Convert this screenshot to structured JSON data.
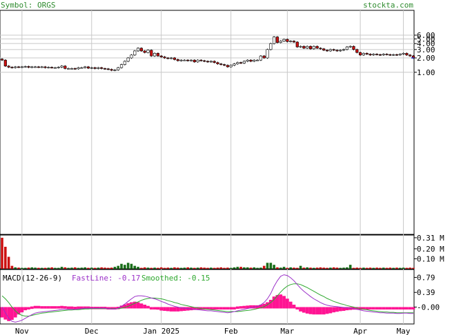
{
  "header": {
    "symbol_text": "Symbol: ORGS",
    "site": "stockta.com"
  },
  "macd_legend": {
    "title": "MACD(12-26-9)",
    "fast": "FastLine: -0.17",
    "smoothed": "Smoothed: -0.15"
  },
  "colors": {
    "text_green": "#2e8b2e",
    "fast_line": "#9b30c8",
    "smoothed_line": "#2ea82e",
    "hist": "#ff1493",
    "up_candle": "#ffffff",
    "down_candle": "#cc1111",
    "vol_up": "#1a6e1a",
    "vol_down": "#cc1111",
    "grid": "#c8c8c8"
  },
  "chart_data": [
    {
      "type": "candlestick",
      "name": "price",
      "scale": "log",
      "y_ticks": [
        "6.00",
        "5.00",
        "4.00",
        "3.00",
        "2.00",
        "1.00"
      ],
      "y_tick_values": [
        6,
        5,
        4,
        3,
        2,
        1
      ],
      "x_tick_labels": [
        "Nov",
        "Dec",
        "Jan 2025",
        "Feb",
        "Mar",
        "Apr",
        "May"
      ],
      "x_tick_index": [
        6,
        27,
        48,
        69,
        86,
        108,
        121
      ],
      "grid": true,
      "closes": [
        1.8,
        1.35,
        1.28,
        1.25,
        1.3,
        1.28,
        1.3,
        1.32,
        1.27,
        1.3,
        1.3,
        1.28,
        1.3,
        1.25,
        1.27,
        1.25,
        1.25,
        1.28,
        1.35,
        1.2,
        1.2,
        1.2,
        1.18,
        1.25,
        1.25,
        1.3,
        1.22,
        1.25,
        1.2,
        1.25,
        1.2,
        1.18,
        1.15,
        1.1,
        1.12,
        1.25,
        1.45,
        1.7,
        2.0,
        2.3,
        2.8,
        3.2,
        2.8,
        2.6,
        2.9,
        2.2,
        2.5,
        2.2,
        2.1,
        2.0,
        1.95,
        2.0,
        1.85,
        1.75,
        1.8,
        1.8,
        1.75,
        1.8,
        1.65,
        1.8,
        1.75,
        1.7,
        1.65,
        1.7,
        1.6,
        1.5,
        1.45,
        1.4,
        1.3,
        1.4,
        1.5,
        1.6,
        1.55,
        1.7,
        1.8,
        1.7,
        1.8,
        1.8,
        2.2,
        2.0,
        3.0,
        4.0,
        5.5,
        4.2,
        4.5,
        4.9,
        4.4,
        4.5,
        4.3,
        3.4,
        3.5,
        3.2,
        3.5,
        3.1,
        3.5,
        3.2,
        3.1,
        2.9,
        2.8,
        3.0,
        2.9,
        2.8,
        2.9,
        3.0,
        3.4,
        3.5,
        3.0,
        2.6,
        2.3,
        2.5,
        2.4,
        2.3,
        2.4,
        2.35,
        2.3,
        2.4,
        2.35,
        2.3,
        2.35,
        2.3,
        2.4,
        2.5,
        2.3,
        2.2,
        2.0
      ],
      "last_close": 2.0
    },
    {
      "type": "bar",
      "name": "volume",
      "y_ticks": [
        "0.31 M",
        "0.20 M",
        "0.10 M"
      ],
      "y_tick_values": [
        0.31,
        0.2,
        0.1
      ],
      "values": [
        0.31,
        0.22,
        0.12,
        0.03,
        0.015,
        0.012,
        0.01,
        0.01,
        0.012,
        0.015,
        0.012,
        0.01,
        0.01,
        0.01,
        0.012,
        0.015,
        0.01,
        0.01,
        0.02,
        0.015,
        0.01,
        0.012,
        0.015,
        0.01,
        0.012,
        0.015,
        0.01,
        0.012,
        0.01,
        0.012,
        0.015,
        0.012,
        0.01,
        0.012,
        0.02,
        0.03,
        0.05,
        0.04,
        0.06,
        0.05,
        0.03,
        0.02,
        0.01,
        0.015,
        0.012,
        0.01,
        0.012,
        0.01,
        0.015,
        0.01,
        0.012,
        0.01,
        0.015,
        0.012,
        0.01,
        0.012,
        0.015,
        0.012,
        0.01,
        0.012,
        0.015,
        0.012,
        0.01,
        0.012,
        0.01,
        0.012,
        0.015,
        0.01,
        0.012,
        0.01,
        0.015,
        0.02,
        0.02,
        0.015,
        0.015,
        0.012,
        0.015,
        0.01,
        0.012,
        0.03,
        0.06,
        0.06,
        0.04,
        0.015,
        0.012,
        0.02,
        0.01,
        0.015,
        0.012,
        0.01,
        0.03,
        0.012,
        0.015,
        0.012,
        0.01,
        0.012,
        0.015,
        0.012,
        0.01,
        0.012,
        0.015,
        0.012,
        0.01,
        0.012,
        0.015,
        0.04,
        0.01,
        0.012,
        0.01,
        0.012,
        0.01,
        0.012,
        0.01,
        0.012,
        0.01,
        0.012,
        0.01,
        0.012,
        0.01,
        0.012,
        0.01,
        0.012,
        0.01,
        0.012,
        0.01
      ],
      "ylim": [
        0,
        0.33
      ]
    },
    {
      "type": "line",
      "name": "MACD(12-26-9)",
      "y_ticks": [
        "0.79",
        "0.39",
        "-0.00"
      ],
      "y_tick_values": [
        0.79,
        0.39,
        0.0
      ],
      "ylim": [
        -0.45,
        1.0
      ],
      "series": [
        {
          "name": "FastLine",
          "values": [
            0.0,
            -0.15,
            -0.3,
            -0.38,
            -0.4,
            -0.38,
            -0.35,
            -0.3,
            -0.25,
            -0.2,
            -0.16,
            -0.14,
            -0.13,
            -0.12,
            -0.11,
            -0.1,
            -0.09,
            -0.08,
            -0.06,
            -0.06,
            -0.06,
            -0.06,
            -0.06,
            -0.05,
            -0.04,
            -0.03,
            -0.03,
            -0.03,
            -0.03,
            -0.03,
            -0.03,
            -0.03,
            -0.04,
            -0.05,
            -0.05,
            -0.03,
            0.02,
            0.08,
            0.15,
            0.22,
            0.28,
            0.3,
            0.3,
            0.29,
            0.27,
            0.24,
            0.22,
            0.19,
            0.15,
            0.12,
            0.08,
            0.05,
            0.02,
            0.0,
            -0.02,
            -0.03,
            -0.04,
            -0.05,
            -0.06,
            -0.07,
            -0.08,
            -0.09,
            -0.1,
            -0.1,
            -0.11,
            -0.12,
            -0.13,
            -0.14,
            -0.15,
            -0.14,
            -0.12,
            -0.1,
            -0.08,
            -0.06,
            -0.04,
            -0.02,
            0.0,
            0.02,
            0.06,
            0.12,
            0.22,
            0.36,
            0.55,
            0.7,
            0.82,
            0.86,
            0.84,
            0.78,
            0.7,
            0.6,
            0.5,
            0.42,
            0.35,
            0.28,
            0.22,
            0.17,
            0.12,
            0.08,
            0.05,
            0.03,
            0.02,
            0.01,
            0.0,
            -0.01,
            -0.02,
            -0.03,
            -0.04,
            -0.06,
            -0.08,
            -0.1,
            -0.11,
            -0.12,
            -0.13,
            -0.14,
            -0.15,
            -0.15,
            -0.16,
            -0.16,
            -0.16,
            -0.17,
            -0.17,
            -0.16,
            -0.16,
            -0.17,
            -0.17
          ]
        },
        {
          "name": "Smoothed",
          "values": [
            0.3,
            0.22,
            0.12,
            0.0,
            -0.1,
            -0.18,
            -0.22,
            -0.24,
            -0.24,
            -0.22,
            -0.2,
            -0.18,
            -0.16,
            -0.15,
            -0.14,
            -0.13,
            -0.12,
            -0.11,
            -0.1,
            -0.09,
            -0.08,
            -0.08,
            -0.07,
            -0.07,
            -0.06,
            -0.05,
            -0.05,
            -0.04,
            -0.04,
            -0.04,
            -0.04,
            -0.04,
            -0.04,
            -0.04,
            -0.04,
            -0.04,
            -0.03,
            -0.01,
            0.02,
            0.06,
            0.1,
            0.14,
            0.18,
            0.21,
            0.23,
            0.24,
            0.24,
            0.23,
            0.22,
            0.2,
            0.17,
            0.15,
            0.12,
            0.1,
            0.07,
            0.05,
            0.03,
            0.01,
            -0.01,
            -0.02,
            -0.04,
            -0.05,
            -0.06,
            -0.07,
            -0.08,
            -0.09,
            -0.1,
            -0.11,
            -0.12,
            -0.12,
            -0.12,
            -0.12,
            -0.11,
            -0.1,
            -0.09,
            -0.08,
            -0.06,
            -0.04,
            -0.02,
            0.01,
            0.06,
            0.12,
            0.2,
            0.3,
            0.4,
            0.49,
            0.56,
            0.6,
            0.62,
            0.62,
            0.6,
            0.56,
            0.52,
            0.47,
            0.42,
            0.37,
            0.32,
            0.28,
            0.23,
            0.19,
            0.15,
            0.12,
            0.09,
            0.07,
            0.04,
            0.02,
            0.0,
            -0.02,
            -0.04,
            -0.06,
            -0.07,
            -0.09,
            -0.1,
            -0.11,
            -0.12,
            -0.13,
            -0.13,
            -0.14,
            -0.14,
            -0.15,
            -0.15,
            -0.15,
            -0.15,
            -0.15,
            -0.15
          ]
        }
      ]
    }
  ]
}
